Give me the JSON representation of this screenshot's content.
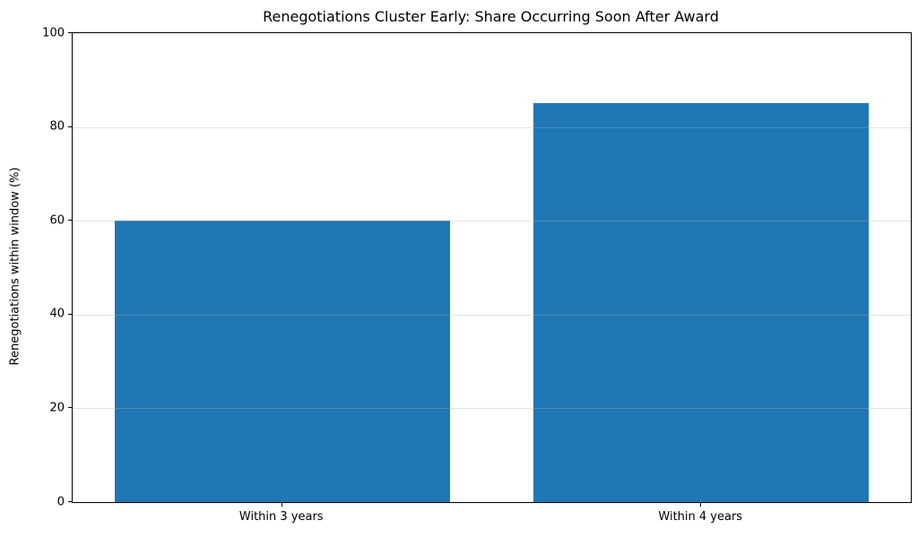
{
  "chart_data": {
    "type": "bar",
    "title": "Renegotiations Cluster Early: Share Occurring Soon After Award",
    "xlabel": "",
    "ylabel": "Renegotiations within window (%)",
    "categories": [
      "Within 3 years",
      "Within 4 years"
    ],
    "values": [
      60,
      85
    ],
    "ylim": [
      0,
      100
    ],
    "yticks": [
      0,
      20,
      40,
      60,
      80,
      100
    ],
    "bar_color": "#1f77b4",
    "grid": "horizontal-y, drawn above bars",
    "grid_color": "#b0b0b0",
    "axis_color": "#000000",
    "background_color": "#ffffff",
    "legend": "none"
  }
}
